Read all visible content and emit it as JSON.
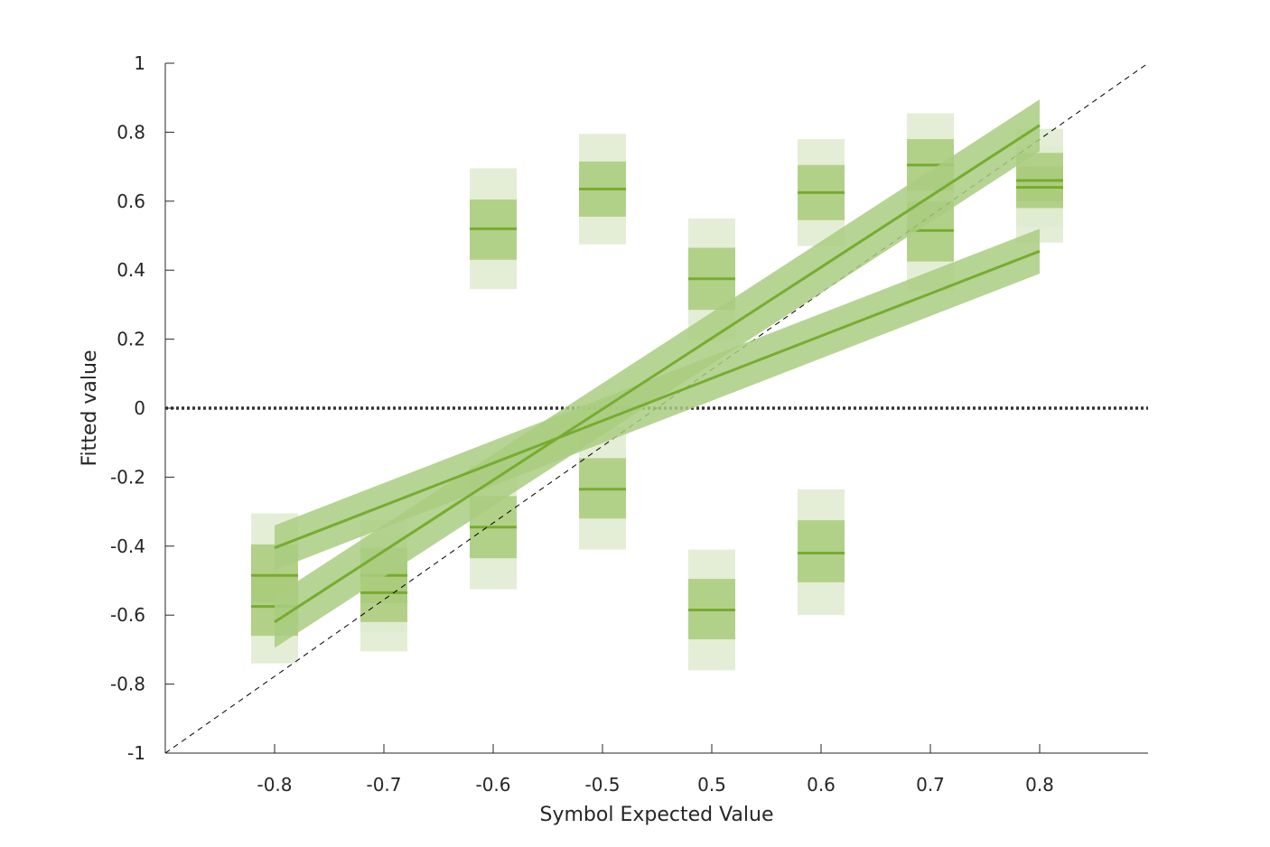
{
  "chart_data": {
    "type": "scatter",
    "title": "",
    "xlabel": "Symbol Expected Value",
    "ylabel": "Fitted value",
    "categories": [
      "-0.8",
      "-0.7",
      "-0.6",
      "-0.5",
      "0.5",
      "0.6",
      "0.7",
      "0.8"
    ],
    "ylim": [
      -1,
      1
    ],
    "yticks": [
      "1",
      "0.8",
      "0.6",
      "0.4",
      "0.2",
      "0",
      "-0.2",
      "-0.4",
      "-0.6",
      "-0.8",
      "-1"
    ],
    "grid": false,
    "colors": {
      "mean": "#77ac30",
      "inner_band": "#a9cb7a",
      "outer_band": "#dfebd0",
      "fit_band": "#a9cd80",
      "fit_line": "#77ac30",
      "zero_line": "#333333",
      "identity": "#000000"
    },
    "boxes": [
      {
        "x": "-0.8",
        "mean": -0.485,
        "inner": [
          -0.565,
          -0.395
        ],
        "outer": [
          -0.655,
          -0.305
        ]
      },
      {
        "x": "-0.8",
        "mean": -0.575,
        "inner": [
          -0.66,
          -0.49
        ],
        "outer": [
          -0.74,
          -0.4
        ]
      },
      {
        "x": "-0.7",
        "mean": -0.485,
        "inner": [
          -0.565,
          -0.405
        ],
        "outer": [
          -0.65,
          -0.325
        ]
      },
      {
        "x": "-0.7",
        "mean": -0.535,
        "inner": [
          -0.62,
          -0.45
        ],
        "outer": [
          -0.705,
          -0.37
        ]
      },
      {
        "x": "-0.6",
        "mean": 0.52,
        "inner": [
          0.43,
          0.605
        ],
        "outer": [
          0.345,
          0.695
        ]
      },
      {
        "x": "-0.6",
        "mean": -0.345,
        "inner": [
          -0.435,
          -0.255
        ],
        "outer": [
          -0.525,
          -0.165
        ]
      },
      {
        "x": "-0.5",
        "mean": 0.635,
        "inner": [
          0.555,
          0.715
        ],
        "outer": [
          0.475,
          0.795
        ]
      },
      {
        "x": "-0.5",
        "mean": -0.235,
        "inner": [
          -0.32,
          -0.145
        ],
        "outer": [
          -0.41,
          -0.055
        ]
      },
      {
        "x": "0.5",
        "mean": 0.375,
        "inner": [
          0.285,
          0.465
        ],
        "outer": [
          0.195,
          0.55
        ]
      },
      {
        "x": "0.5",
        "mean": -0.585,
        "inner": [
          -0.67,
          -0.495
        ],
        "outer": [
          -0.76,
          -0.41
        ]
      },
      {
        "x": "0.6",
        "mean": 0.625,
        "inner": [
          0.545,
          0.705
        ],
        "outer": [
          0.47,
          0.78
        ]
      },
      {
        "x": "0.6",
        "mean": -0.42,
        "inner": [
          -0.505,
          -0.325
        ],
        "outer": [
          -0.6,
          -0.235
        ]
      },
      {
        "x": "0.7",
        "mean": 0.705,
        "inner": [
          0.63,
          0.78
        ],
        "outer": [
          0.555,
          0.855
        ]
      },
      {
        "x": "0.7",
        "mean": 0.515,
        "inner": [
          0.425,
          0.6
        ],
        "outer": [
          0.34,
          0.69
        ]
      },
      {
        "x": "0.8",
        "mean": 0.66,
        "inner": [
          0.6,
          0.74
        ],
        "outer": [
          0.525,
          0.81
        ]
      },
      {
        "x": "0.8",
        "mean": 0.64,
        "inner": [
          0.58,
          0.7
        ],
        "outer": [
          0.48,
          0.76
        ]
      }
    ],
    "fits": [
      {
        "x": [
          "-0.8",
          "0.8"
        ],
        "y": [
          -0.62,
          0.82
        ],
        "band": 0.075
      },
      {
        "x": [
          "-0.8",
          "0.8"
        ],
        "y": [
          -0.405,
          0.455
        ],
        "band": 0.065
      }
    ],
    "reference_lines": [
      {
        "kind": "identity",
        "from": [
          -1,
          -1
        ],
        "to": [
          1,
          1
        ],
        "style": "dashed"
      },
      {
        "kind": "zero",
        "y": 0,
        "style": "dotted"
      }
    ]
  }
}
